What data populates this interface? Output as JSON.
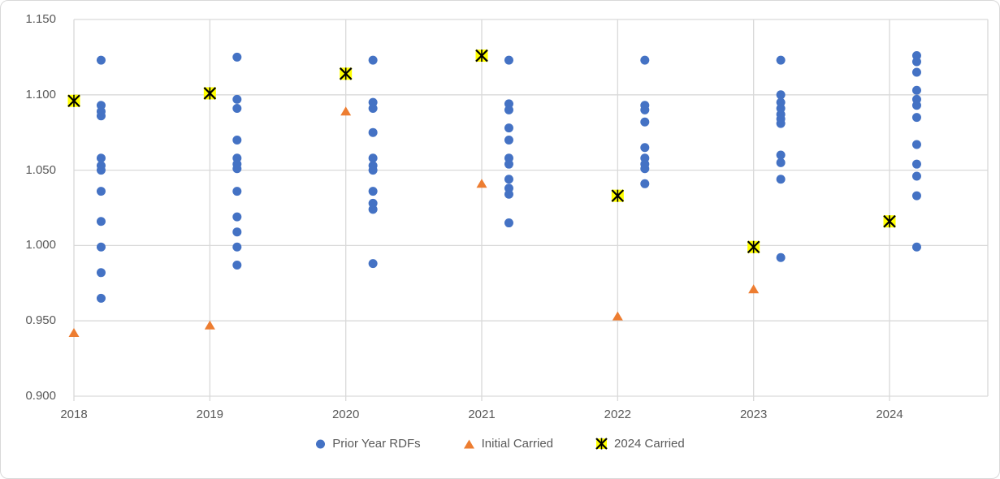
{
  "chart_data": {
    "type": "scatter",
    "title": "",
    "xlabel": "",
    "ylabel": "",
    "x_categories": [
      "2018",
      "2019",
      "2020",
      "2021",
      "2022",
      "2023",
      "2024"
    ],
    "ylim": [
      0.9,
      1.15
    ],
    "yticks": [
      0.9,
      0.95,
      1.0,
      1.05,
      1.1,
      1.15
    ],
    "ytick_labels": [
      "0.900",
      "0.950",
      "1.000",
      "1.050",
      "1.100",
      "1.150"
    ],
    "grid": true,
    "legend_position": "bottom",
    "series": [
      {
        "name": "Prior Year RDFs",
        "marker": "circle",
        "color": "#4472C4",
        "x_offset": 0.2,
        "points_by_year": {
          "2018": [
            1.123,
            1.093,
            1.089,
            1.086,
            1.058,
            1.053,
            1.05,
            1.036,
            1.016,
            0.999,
            0.982,
            0.965
          ],
          "2019": [
            1.125,
            1.097,
            1.091,
            1.07,
            1.058,
            1.054,
            1.051,
            1.036,
            1.019,
            1.009,
            0.999,
            0.987
          ],
          "2020": [
            1.123,
            1.095,
            1.091,
            1.075,
            1.058,
            1.053,
            1.05,
            1.036,
            1.028,
            1.024,
            0.988
          ],
          "2021": [
            1.123,
            1.094,
            1.09,
            1.078,
            1.07,
            1.058,
            1.054,
            1.044,
            1.038,
            1.034,
            1.015
          ],
          "2022": [
            1.123,
            1.093,
            1.09,
            1.082,
            1.065,
            1.058,
            1.054,
            1.051,
            1.041
          ],
          "2023": [
            1.123,
            1.1,
            1.095,
            1.091,
            1.087,
            1.084,
            1.081,
            1.06,
            1.055,
            1.044,
            0.992
          ],
          "2024": [
            1.126,
            1.122,
            1.115,
            1.103,
            1.097,
            1.093,
            1.085,
            1.067,
            1.054,
            1.046,
            1.033,
            0.999
          ]
        }
      },
      {
        "name": "Initial Carried",
        "marker": "triangle",
        "color": "#ED7D31",
        "x_offset": 0,
        "points_by_year": {
          "2018": [
            0.942
          ],
          "2019": [
            0.947
          ],
          "2020": [
            1.089
          ],
          "2021": [
            1.041
          ],
          "2022": [
            0.953
          ],
          "2023": [
            0.971
          ]
        }
      },
      {
        "name": "2024 Carried",
        "marker": "star",
        "color": "#FFFF00",
        "stroke": "#000000",
        "x_offset": 0,
        "points_by_year": {
          "2018": [
            1.096
          ],
          "2019": [
            1.101
          ],
          "2020": [
            1.114
          ],
          "2021": [
            1.126
          ],
          "2022": [
            1.033
          ],
          "2023": [
            0.999
          ],
          "2024": [
            1.016
          ]
        }
      }
    ],
    "colors": {
      "gridline": "#D9D9D9",
      "tick_label": "#595959",
      "background": "#FFFFFF",
      "border": "#D9D9D9"
    }
  }
}
